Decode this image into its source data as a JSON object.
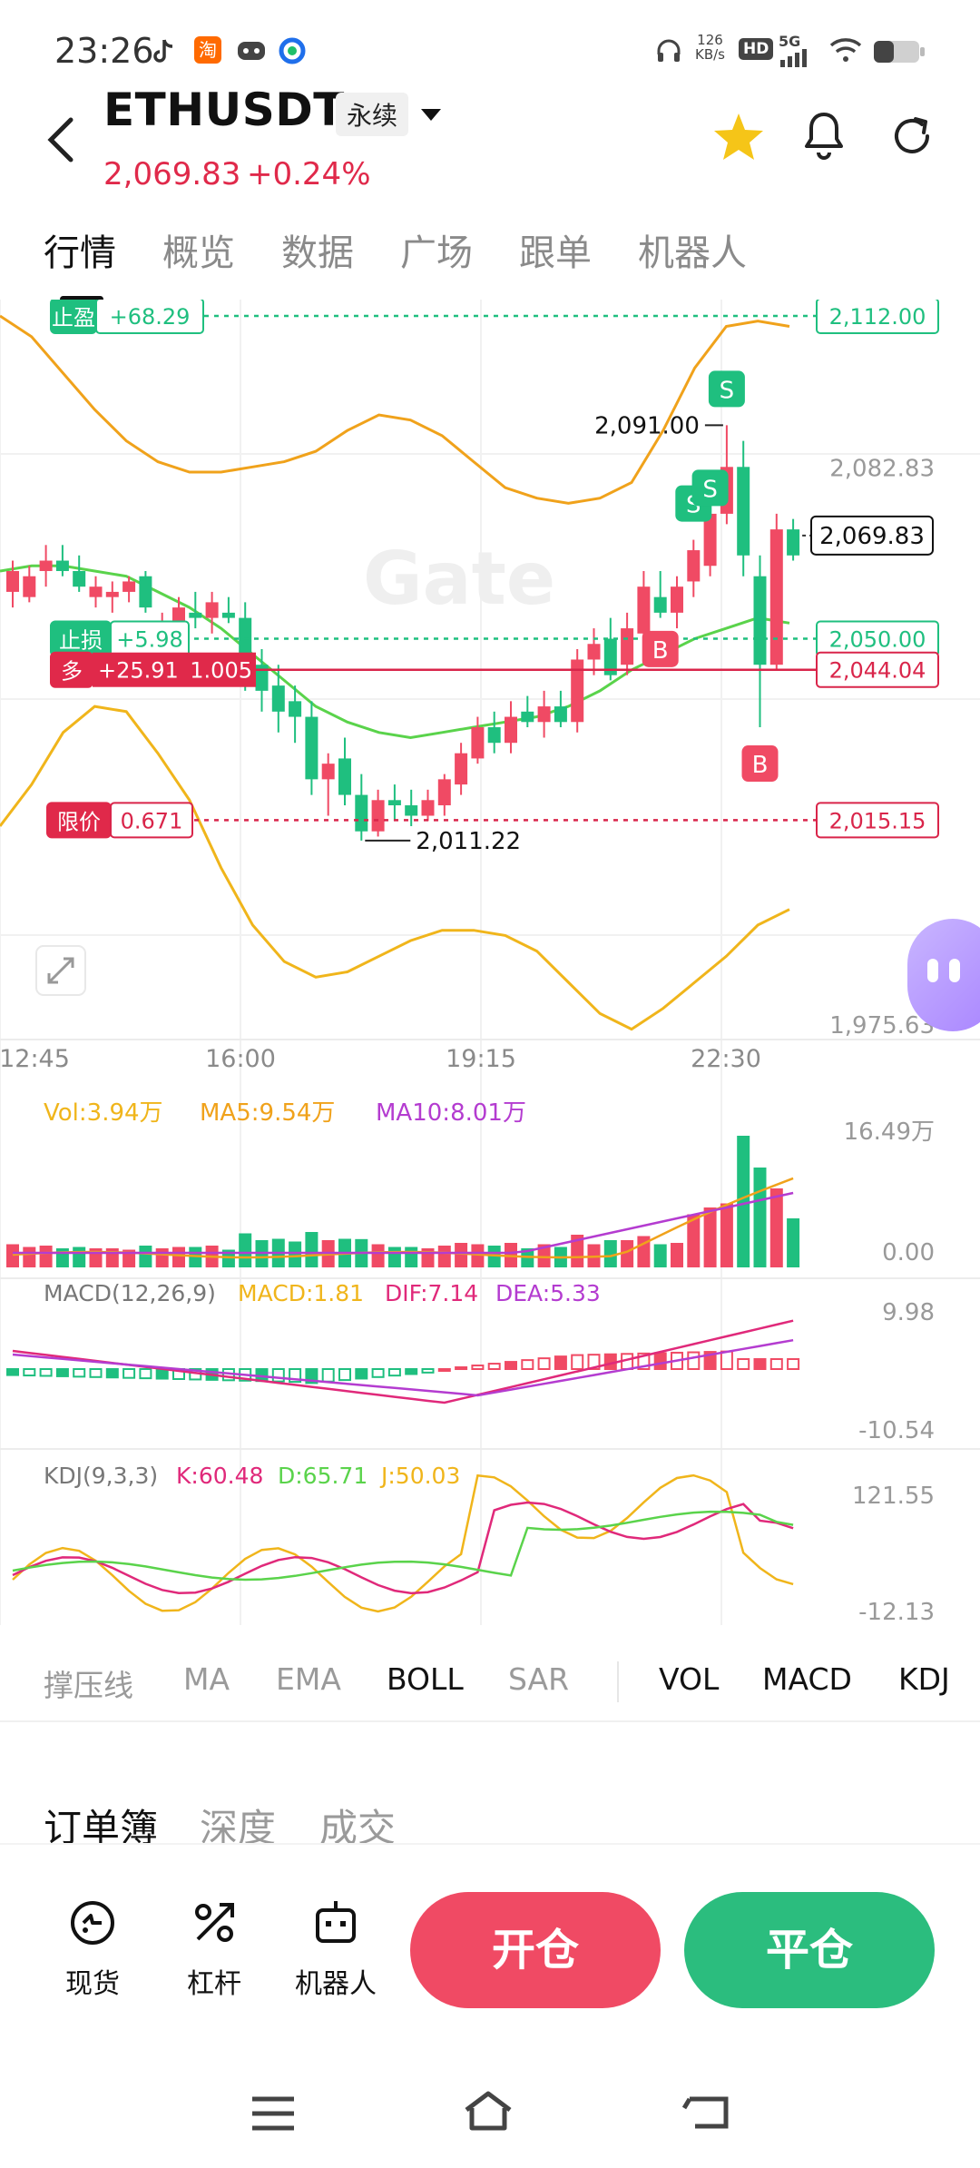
{
  "status_bar": {
    "time": "23:26",
    "net_speed_value": "126",
    "net_speed_unit": "KB/s",
    "hd_label": "HD",
    "signal_label": "5G",
    "app_icons": [
      "tiktok-icon",
      "taobao-icon",
      "game-icon",
      "browser-icon"
    ],
    "right_icons": [
      "headphones-icon",
      "hd-badge-icon",
      "signal-5g-icon",
      "wifi-icon",
      "battery-icon"
    ]
  },
  "header": {
    "symbol": "ETHUSDT",
    "contract_type": "永续",
    "price": "2,069.83",
    "change": "+0.24%",
    "colors": {
      "up": "#e0294a",
      "down": "#2bbd7e",
      "star": "#f5c518"
    }
  },
  "tabs": [
    {
      "label": "行情",
      "active": true
    },
    {
      "label": "概览",
      "active": false
    },
    {
      "label": "数据",
      "active": false
    },
    {
      "label": "广场",
      "active": false
    },
    {
      "label": "跟单",
      "active": false
    },
    {
      "label": "机器人",
      "active": false
    }
  ],
  "chart_data": {
    "type": "candlestick",
    "watermark": "Gate",
    "price_axis": [
      "2,082.83",
      "1,975.63"
    ],
    "time_axis": [
      "12:45",
      "16:00",
      "19:15",
      "22:30"
    ],
    "price_range": [
      1975.63,
      2112
    ],
    "bollinger": {
      "upper": [
        2112,
        2108,
        2101,
        2094,
        2088,
        2084,
        2082,
        2082,
        2083,
        2084,
        2086,
        2090,
        2093,
        2092,
        2089,
        2084,
        2079,
        2077,
        2076,
        2077,
        2080,
        2090,
        2102,
        2110,
        2111,
        2110
      ],
      "middle": [
        2063,
        2064,
        2064,
        2063,
        2062,
        2059,
        2056,
        2052,
        2047,
        2042,
        2037,
        2034,
        2032,
        2031,
        2032,
        2033,
        2034,
        2035,
        2037,
        2040,
        2044,
        2047,
        2050,
        2052,
        2054,
        2053
      ],
      "lower": [
        2014,
        2022,
        2032,
        2037,
        2036,
        2028,
        2019,
        2006,
        1995,
        1988,
        1985,
        1986,
        1989,
        1992,
        1994,
        1994,
        1993,
        1990,
        1984,
        1978,
        1975,
        1979,
        1984,
        1989,
        1995,
        1998
      ]
    },
    "candles": [
      {
        "o": 2059,
        "h": 2065,
        "l": 2056,
        "c": 2063
      },
      {
        "o": 2058,
        "h": 2064,
        "l": 2057,
        "c": 2062
      },
      {
        "o": 2063,
        "h": 2068,
        "l": 2060,
        "c": 2065
      },
      {
        "o": 2065,
        "h": 2068,
        "l": 2062,
        "c": 2063
      },
      {
        "o": 2063,
        "h": 2066,
        "l": 2059,
        "c": 2060
      },
      {
        "o": 2058,
        "h": 2062,
        "l": 2056,
        "c": 2060
      },
      {
        "o": 2058,
        "h": 2061,
        "l": 2055,
        "c": 2059
      },
      {
        "o": 2059,
        "h": 2062,
        "l": 2057,
        "c": 2061
      },
      {
        "o": 2062,
        "h": 2063,
        "l": 2055,
        "c": 2056
      },
      {
        "o": 2051,
        "h": 2055,
        "l": 2049,
        "c": 2052
      },
      {
        "o": 2053,
        "h": 2058,
        "l": 2051,
        "c": 2056
      },
      {
        "o": 2055,
        "h": 2059,
        "l": 2052,
        "c": 2054
      },
      {
        "o": 2054,
        "h": 2059,
        "l": 2051,
        "c": 2057
      },
      {
        "o": 2055,
        "h": 2058,
        "l": 2053,
        "c": 2054
      },
      {
        "o": 2054,
        "h": 2057,
        "l": 2040,
        "c": 2043
      },
      {
        "o": 2045,
        "h": 2048,
        "l": 2036,
        "c": 2040
      },
      {
        "o": 2041,
        "h": 2045,
        "l": 2032,
        "c": 2036
      },
      {
        "o": 2038,
        "h": 2041,
        "l": 2030,
        "c": 2035
      },
      {
        "o": 2035,
        "h": 2038,
        "l": 2020,
        "c": 2023
      },
      {
        "o": 2023,
        "h": 2028,
        "l": 2016,
        "c": 2026
      },
      {
        "o": 2027,
        "h": 2031,
        "l": 2018,
        "c": 2020
      },
      {
        "o": 2020,
        "h": 2024,
        "l": 2011.22,
        "c": 2013
      },
      {
        "o": 2013,
        "h": 2021,
        "l": 2012,
        "c": 2019
      },
      {
        "o": 2019,
        "h": 2022,
        "l": 2015,
        "c": 2018
      },
      {
        "o": 2018,
        "h": 2021,
        "l": 2014,
        "c": 2016
      },
      {
        "o": 2016,
        "h": 2021,
        "l": 2015,
        "c": 2019
      },
      {
        "o": 2018,
        "h": 2024,
        "l": 2016,
        "c": 2023
      },
      {
        "o": 2022,
        "h": 2030,
        "l": 2020,
        "c": 2028
      },
      {
        "o": 2027,
        "h": 2035,
        "l": 2026,
        "c": 2033
      },
      {
        "o": 2033,
        "h": 2036,
        "l": 2028,
        "c": 2030
      },
      {
        "o": 2030,
        "h": 2038,
        "l": 2028,
        "c": 2035
      },
      {
        "o": 2036,
        "h": 2039,
        "l": 2033,
        "c": 2034
      },
      {
        "o": 2034,
        "h": 2040,
        "l": 2031,
        "c": 2037
      },
      {
        "o": 2037,
        "h": 2040,
        "l": 2033,
        "c": 2034
      },
      {
        "o": 2034,
        "h": 2048,
        "l": 2032,
        "c": 2046
      },
      {
        "o": 2046,
        "h": 2052,
        "l": 2043,
        "c": 2049
      },
      {
        "o": 2050,
        "h": 2054,
        "l": 2042,
        "c": 2043
      },
      {
        "o": 2045,
        "h": 2055,
        "l": 2043,
        "c": 2052
      },
      {
        "o": 2051,
        "h": 2063,
        "l": 2048,
        "c": 2060
      },
      {
        "o": 2058,
        "h": 2063,
        "l": 2054,
        "c": 2055
      },
      {
        "o": 2055,
        "h": 2062,
        "l": 2052,
        "c": 2060
      },
      {
        "o": 2061,
        "h": 2069,
        "l": 2058,
        "c": 2067
      },
      {
        "o": 2064,
        "h": 2078,
        "l": 2062,
        "c": 2074
      },
      {
        "o": 2074,
        "h": 2091,
        "l": 2072,
        "c": 2083
      },
      {
        "o": 2083,
        "h": 2088,
        "l": 2062,
        "c": 2066
      },
      {
        "o": 2062,
        "h": 2066,
        "l": 2033,
        "c": 2045
      },
      {
        "o": 2045,
        "h": 2074,
        "l": 2044,
        "c": 2071
      },
      {
        "o": 2071,
        "h": 2073,
        "l": 2065,
        "c": 2066
      }
    ],
    "annotations": {
      "high_label": "2,091.00",
      "low_label": "2,011.22",
      "tp_tag": "止盈",
      "tp_pnl": "+68.29",
      "tp_price": "2,112.00",
      "sl_tag": "止损",
      "sl_pnl": "+5.98",
      "sl_price": "2,050.00",
      "pos_tag": "多",
      "pos_pnl": "+25.91",
      "pos_size": "1.005",
      "pos_price": "2,044.04",
      "limit_tag": "限价",
      "limit_qty": "0.671",
      "limit_price": "2,015.15",
      "last_price": "2,069.83",
      "buy_marker": "B",
      "sell_marker": "S"
    },
    "volume": {
      "legend": {
        "vol": "Vol:3.94万",
        "ma5": "MA5:9.54万",
        "ma10": "MA10:8.01万"
      },
      "axis": [
        "16.49万",
        "0.00"
      ]
    },
    "macd": {
      "legend": {
        "name": "MACD(12,26,9)",
        "macd": "MACD:1.81",
        "dif": "DIF:7.14",
        "dea": "DEA:5.33"
      },
      "axis": [
        "9.98",
        "-10.54"
      ]
    },
    "kdj": {
      "legend": {
        "name": "KDJ(9,3,3)",
        "k": "K:60.48",
        "d": "D:65.71",
        "j": "J:50.03"
      },
      "axis": [
        "121.55",
        "-12.13"
      ]
    }
  },
  "indicators": [
    {
      "label": "撑压线",
      "on": false
    },
    {
      "label": "MA",
      "on": false
    },
    {
      "label": "EMA",
      "on": false
    },
    {
      "label": "BOLL",
      "on": true
    },
    {
      "label": "SAR",
      "on": false
    },
    {
      "label": "VOL",
      "on": true
    },
    {
      "label": "MACD",
      "on": true
    },
    {
      "label": "KDJ",
      "on": true
    }
  ],
  "order_tabs": [
    {
      "label": "订单簿",
      "on": true
    },
    {
      "label": "深度",
      "on": false
    },
    {
      "label": "成交",
      "on": false
    }
  ],
  "actions": [
    {
      "label": "现货",
      "icon": "spot-icon"
    },
    {
      "label": "杠杆",
      "icon": "leverage-icon"
    },
    {
      "label": "机器人",
      "icon": "robot-icon"
    }
  ],
  "buttons": {
    "open": "开仓",
    "close": "平仓"
  }
}
